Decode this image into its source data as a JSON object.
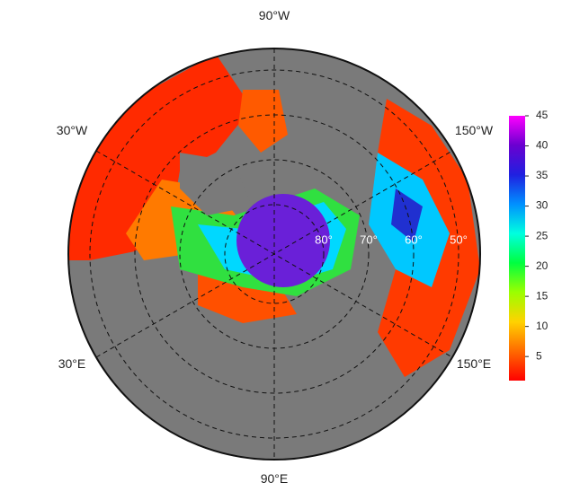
{
  "map": {
    "longitude_labels": [
      "90°W",
      "150°W",
      "150°E",
      "90°E",
      "30°E",
      "30°W"
    ],
    "latitude_labels": [
      "80°",
      "70°",
      "60°",
      "50°"
    ]
  },
  "colorbar": {
    "range": [
      1,
      45
    ],
    "ticks": [
      5,
      10,
      15,
      20,
      25,
      30,
      35,
      40,
      45
    ],
    "colors": [
      "#ff0000",
      "#ff6a00",
      "#ffd200",
      "#9bff00",
      "#00ff40",
      "#00ffe0",
      "#0090ff",
      "#2020e0",
      "#6a00d0",
      "#ff00ff"
    ]
  }
}
